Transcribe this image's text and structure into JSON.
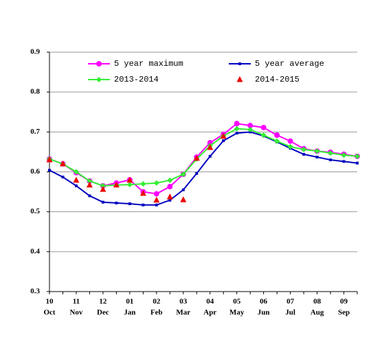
{
  "chart_data": {
    "type": "line",
    "categories": [
      "10",
      null,
      "11",
      null,
      "12",
      null,
      "01",
      null,
      "02",
      null,
      "03",
      null,
      "04",
      null,
      "05",
      null,
      "06",
      null,
      "07",
      null,
      "08",
      null,
      "09",
      null
    ],
    "category_sublabels": [
      "Oct",
      null,
      "Nov",
      null,
      "Dec",
      null,
      "Jan",
      null,
      "Feb",
      null,
      "Mar",
      null,
      "Apr",
      null,
      "May",
      null,
      "Jun",
      null,
      "Jul",
      null,
      "Aug",
      null,
      "Sep",
      null
    ],
    "ylim": [
      0.3,
      0.9
    ],
    "yticks": [
      0.3,
      0.4,
      0.5,
      0.6,
      0.7,
      0.8,
      0.9
    ],
    "grid": true,
    "series": [
      {
        "name": "5 year maximum",
        "color": "#ff00ff",
        "marker": "circle",
        "line": true,
        "values": [
          0.632,
          0.62,
          0.598,
          0.577,
          0.565,
          0.572,
          0.58,
          0.55,
          0.545,
          0.563,
          0.594,
          0.637,
          0.673,
          0.694,
          0.721,
          0.716,
          0.711,
          0.692,
          0.677,
          0.658,
          0.652,
          0.649,
          0.644,
          0.639
        ]
      },
      {
        "name": "5 year average",
        "color": "#0000c0",
        "marker": "square",
        "line": true,
        "values": [
          0.604,
          0.587,
          0.565,
          0.54,
          0.524,
          0.522,
          0.52,
          0.517,
          0.517,
          0.529,
          0.555,
          0.596,
          0.639,
          0.678,
          0.697,
          0.7,
          0.69,
          0.675,
          0.659,
          0.644,
          0.637,
          0.63,
          0.626,
          0.622
        ]
      },
      {
        "name": "2013-2014",
        "color": "#33ee33",
        "marker": "diamond",
        "line": true,
        "values": [
          0.632,
          0.62,
          0.6,
          0.577,
          0.565,
          0.567,
          0.568,
          0.57,
          0.572,
          0.579,
          0.594,
          0.632,
          0.665,
          0.69,
          0.708,
          0.706,
          0.692,
          0.677,
          0.663,
          0.656,
          0.652,
          0.647,
          0.642,
          0.639
        ]
      },
      {
        "name": "2014-2015",
        "color": "#ee0000",
        "marker": "triangle",
        "line": false,
        "values": [
          0.63,
          0.62,
          0.579,
          0.567,
          0.556,
          0.567,
          0.579,
          0.546,
          0.529,
          0.537,
          0.53,
          0.634,
          0.661,
          0.689,
          null,
          null,
          null,
          null,
          null,
          null,
          null,
          null,
          null,
          null
        ]
      }
    ]
  }
}
